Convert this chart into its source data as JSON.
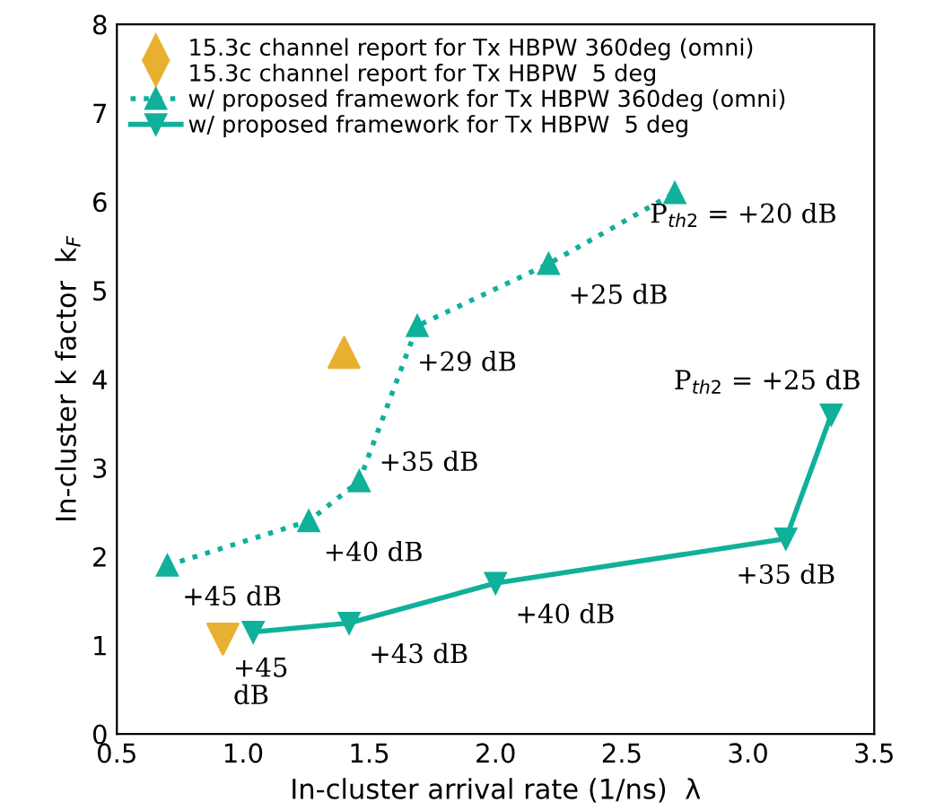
{
  "chart_data": {
    "type": "scatter",
    "xlabel": "In-cluster arrival rate (1/ns)  λ",
    "ylabel": "In-cluster k factor  k$_{F}$",
    "series": [
      {
        "name": "15.3c channel report for Tx HBPW 360deg (omni)",
        "color": "#e8b030",
        "marker": "triangle",
        "x": [
          1.4
        ],
        "values": [
          4.3
        ]
      },
      {
        "name": "15.3c channel report for Tx HBPW  5 deg",
        "color": "#e8b030",
        "marker": "triangle_down",
        "x": [
          0.92
        ],
        "values": [
          1.07
        ]
      },
      {
        "name": "w/ proposed framework for Tx HBPW 360deg (omni)",
        "color": "#10b09a",
        "type": "line",
        "marker": "triangle",
        "line_style": "dotted",
        "x": [
          0.7,
          1.26,
          1.46,
          1.69,
          2.21,
          2.71
        ],
        "values": [
          1.9,
          2.4,
          2.85,
          4.6,
          5.3,
          6.1
        ]
      },
      {
        "name": "w/ proposed framework for Tx HBPW  5 deg",
        "color": "#10b09a",
        "type": "line",
        "marker": "triangle_down",
        "line_style": "solid",
        "x": [
          1.04,
          1.42,
          2.0,
          3.15,
          3.33
        ],
        "values": [
          1.15,
          1.25,
          1.7,
          2.2,
          3.6
        ]
      }
    ],
    "annotations": [
      {
        "text": "+45 dB",
        "x": 0.7,
        "y": 1.9
      },
      {
        "text": "+40 dB",
        "x": 1.26,
        "y": 2.4
      },
      {
        "text": "+35 dB",
        "x": 1.46,
        "y": 2.85
      },
      {
        "text": "+29 dB",
        "x": 1.69,
        "y": 4.6
      },
      {
        "text": "+25 dB",
        "x": 2.21,
        "y": 5.3
      },
      {
        "text": "P$_{th2}$ = +20 dB",
        "x": 2.71,
        "y": 6.1
      },
      {
        "text": "+45\ndB",
        "x": 1.04,
        "y": 1.15
      },
      {
        "text": "+43 dB",
        "x": 1.42,
        "y": 1.25
      },
      {
        "text": "+40 dB",
        "x": 2.0,
        "y": 1.7
      },
      {
        "text": "+35 dB",
        "x": 3.15,
        "y": 2.2
      },
      {
        "text": "P$_{th2}$ = +25 dB",
        "x": 3.33,
        "y": 3.6
      }
    ],
    "xlim": [
      0.5,
      3.5
    ],
    "xticks": [
      0.5,
      {
        "value": 1,
        "label": "1.0"
      },
      1.5,
      {
        "value": 2,
        "label": "2.0"
      },
      2.5,
      {
        "value": 3,
        "label": "3.0"
      },
      3.5
    ],
    "ylim": [
      0,
      8
    ],
    "yticks": [
      0,
      1,
      2,
      3,
      4,
      5,
      6,
      7,
      8
    ],
    "grid": false,
    "legend": "top left"
  }
}
